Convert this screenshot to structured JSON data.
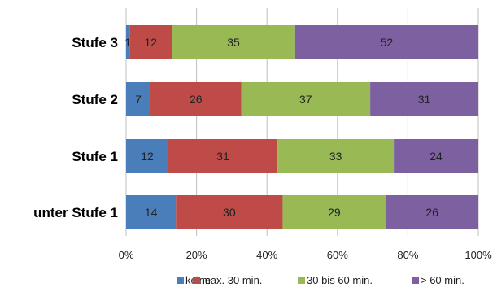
{
  "chart_data": {
    "type": "bar",
    "orientation": "horizontal",
    "stacked": "percent",
    "categories": [
      "Stufe 3",
      "Stufe 2",
      "Stufe 1",
      "unter Stufe 1"
    ],
    "series": [
      {
        "name": "keine",
        "values": [
          1,
          7,
          12,
          14
        ],
        "color": "#4a7ebb"
      },
      {
        "name": "max. 30 min.",
        "values": [
          12,
          26,
          31,
          30
        ],
        "color": "#be4b48"
      },
      {
        "name": "30 bis 60 min.",
        "values": [
          35,
          37,
          33,
          29
        ],
        "color": "#98b954"
      },
      {
        "name": "> 60 min.",
        "values": [
          52,
          31,
          24,
          26
        ],
        "color": "#7d60a0"
      }
    ],
    "xlim": [
      0,
      100
    ],
    "x_ticks": [
      "0%",
      "20%",
      "40%",
      "60%",
      "80%",
      "100%"
    ],
    "title": "",
    "xlabel": "",
    "ylabel": "",
    "grid": "vertical",
    "legend": "bottom"
  }
}
